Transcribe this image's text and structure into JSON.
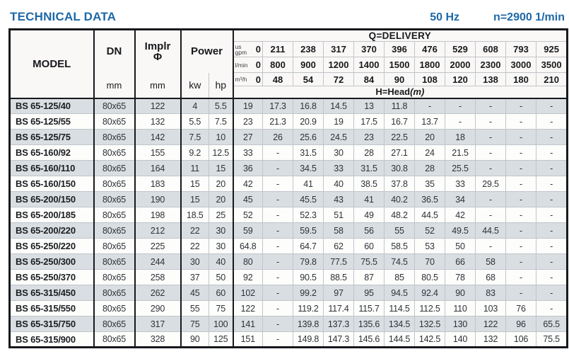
{
  "page": {
    "title": "TECHNICAL DATA",
    "frequency": "50 Hz",
    "speed": "n=2900 1/min"
  },
  "table": {
    "headers": {
      "model": "MODEL",
      "dn": "DN",
      "implr_line1": "Implr",
      "implr_line2": "Φ",
      "power": "Power",
      "kw": "kw",
      "hp": "hp",
      "dn_unit": "mm",
      "implr_unit": "mm",
      "delivery_title": "Q=DELIVERY",
      "head_title": "H=Head",
      "head_unit": "(m)",
      "row_units": [
        "us gpm",
        "l/min",
        "m³/h"
      ],
      "gpm": [
        "0",
        "211",
        "238",
        "317",
        "370",
        "396",
        "476",
        "529",
        "608",
        "793",
        "925"
      ],
      "lmin": [
        "0",
        "800",
        "900",
        "1200",
        "1400",
        "1500",
        "1800",
        "2000",
        "2300",
        "3000",
        "3500"
      ],
      "m3h": [
        "0",
        "48",
        "54",
        "72",
        "84",
        "90",
        "108",
        "120",
        "138",
        "180",
        "210"
      ]
    },
    "rows": [
      {
        "model": "BS 65-125/40",
        "dn": "80x65",
        "implr": "122",
        "kw": "4",
        "hp": "5.5",
        "heads": [
          "19",
          "17.3",
          "16.8",
          "14.5",
          "13",
          "11.8",
          "-",
          "-",
          "-",
          "-",
          "-"
        ]
      },
      {
        "model": "BS 65-125/55",
        "dn": "80x65",
        "implr": "132",
        "kw": "5.5",
        "hp": "7.5",
        "heads": [
          "23",
          "21.3",
          "20.9",
          "19",
          "17.5",
          "16.7",
          "13.7",
          "-",
          "-",
          "-",
          "-"
        ]
      },
      {
        "model": "BS 65-125/75",
        "dn": "80x65",
        "implr": "142",
        "kw": "7.5",
        "hp": "10",
        "heads": [
          "27",
          "26",
          "25.6",
          "24.5",
          "23",
          "22.5",
          "20",
          "18",
          "-",
          "-",
          "-"
        ]
      },
      {
        "model": "BS 65-160/92",
        "dn": "80x65",
        "implr": "155",
        "kw": "9.2",
        "hp": "12.5",
        "heads": [
          "33",
          "-",
          "31.5",
          "30",
          "28",
          "27.1",
          "24",
          "21.5",
          "-",
          "-",
          "-"
        ]
      },
      {
        "model": "BS 65-160/110",
        "dn": "80x65",
        "implr": "164",
        "kw": "11",
        "hp": "15",
        "heads": [
          "36",
          "-",
          "34.5",
          "33",
          "31.5",
          "30.8",
          "28",
          "25.5",
          "-",
          "-",
          "-"
        ]
      },
      {
        "model": "BS 65-160/150",
        "dn": "80x65",
        "implr": "183",
        "kw": "15",
        "hp": "20",
        "heads": [
          "42",
          "-",
          "41",
          "40",
          "38.5",
          "37.8",
          "35",
          "33",
          "29.5",
          "-",
          "-"
        ]
      },
      {
        "model": "BS 65-200/150",
        "dn": "80x65",
        "implr": "190",
        "kw": "15",
        "hp": "20",
        "heads": [
          "45",
          "-",
          "45.5",
          "43",
          "41",
          "40.2",
          "36.5",
          "34",
          "-",
          "-",
          "-"
        ]
      },
      {
        "model": "BS 65-200/185",
        "dn": "80x65",
        "implr": "198",
        "kw": "18.5",
        "hp": "25",
        "heads": [
          "52",
          "-",
          "52.3",
          "51",
          "49",
          "48.2",
          "44.5",
          "42",
          "-",
          "-",
          "-"
        ]
      },
      {
        "model": "BS 65-200/220",
        "dn": "80x65",
        "implr": "212",
        "kw": "22",
        "hp": "30",
        "heads": [
          "59",
          "-",
          "59.5",
          "58",
          "56",
          "55",
          "52",
          "49.5",
          "44.5",
          "-",
          "-"
        ]
      },
      {
        "model": "BS 65-250/220",
        "dn": "80x65",
        "implr": "225",
        "kw": "22",
        "hp": "30",
        "heads": [
          "64.8",
          "-",
          "64.7",
          "62",
          "60",
          "58.5",
          "53",
          "50",
          "-",
          "-",
          "-"
        ]
      },
      {
        "model": "BS 65-250/300",
        "dn": "80x65",
        "implr": "244",
        "kw": "30",
        "hp": "40",
        "heads": [
          "80",
          "-",
          "79.8",
          "77.5",
          "75.5",
          "74.5",
          "70",
          "66",
          "58",
          "-",
          "-"
        ]
      },
      {
        "model": "BS 65-250/370",
        "dn": "80x65",
        "implr": "258",
        "kw": "37",
        "hp": "50",
        "heads": [
          "92",
          "-",
          "90.5",
          "88.5",
          "87",
          "85",
          "80.5",
          "78",
          "68",
          "-",
          "-"
        ]
      },
      {
        "model": "BS 65-315/450",
        "dn": "80x65",
        "implr": "262",
        "kw": "45",
        "hp": "60",
        "heads": [
          "102",
          "-",
          "99.2",
          "97",
          "95",
          "94.5",
          "92.4",
          "90",
          "83",
          "-",
          "-"
        ]
      },
      {
        "model": "BS 65-315/550",
        "dn": "80x65",
        "implr": "290",
        "kw": "55",
        "hp": "75",
        "heads": [
          "122",
          "-",
          "119.2",
          "117.4",
          "115.7",
          "114.5",
          "112.5",
          "110",
          "103",
          "76",
          "-"
        ]
      },
      {
        "model": "BS 65-315/750",
        "dn": "80x65",
        "implr": "317",
        "kw": "75",
        "hp": "100",
        "heads": [
          "141",
          "-",
          "139.8",
          "137.3",
          "135.6",
          "134.5",
          "132.5",
          "130",
          "122",
          "96",
          "65.5"
        ]
      },
      {
        "model": "BS 65-315/900",
        "dn": "80x65",
        "implr": "328",
        "kw": "90",
        "hp": "125",
        "heads": [
          "151",
          "-",
          "149.8",
          "147.3",
          "145.6",
          "144.5",
          "142.5",
          "140",
          "132",
          "106",
          "75.5"
        ]
      }
    ]
  }
}
